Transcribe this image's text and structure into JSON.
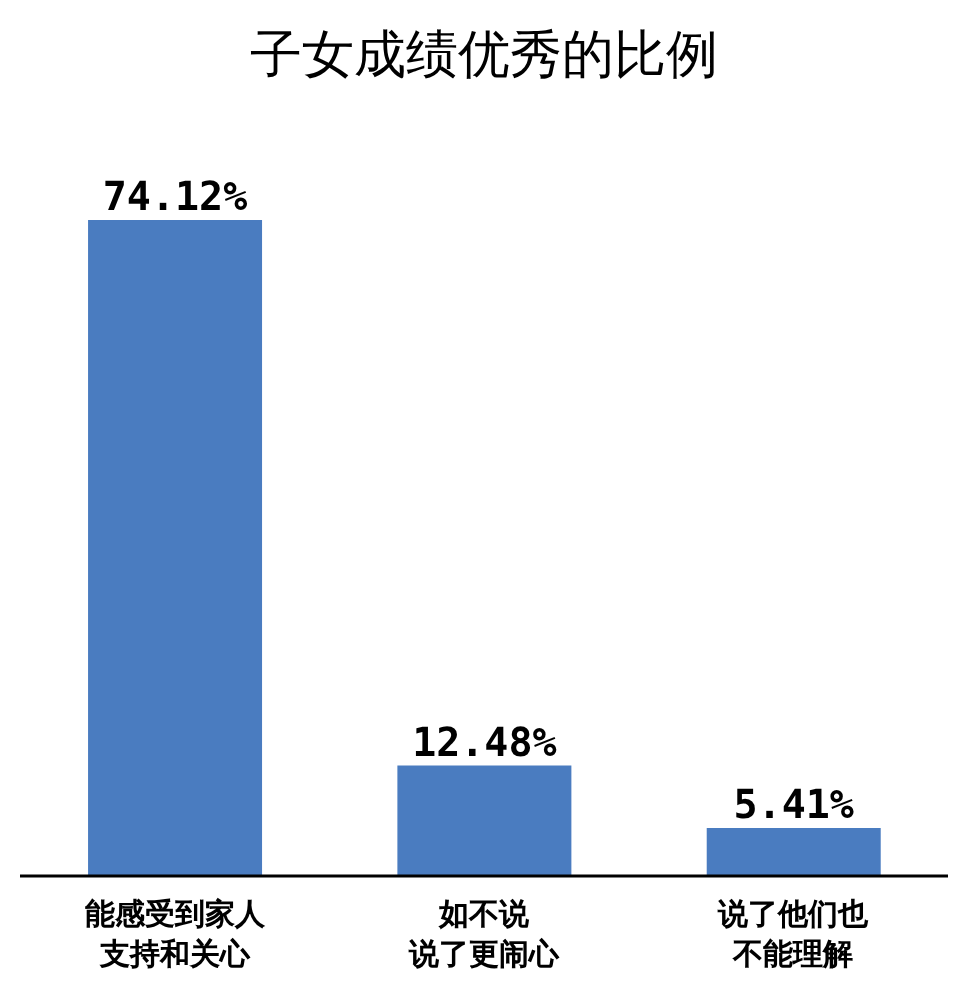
{
  "chart_data": {
    "type": "bar",
    "title": "子女成绩优秀的比例",
    "categories": [
      "能感受到家人支持和关心",
      "如不说说了更闹心",
      "说了他们也不能理解"
    ],
    "values": [
      74.12,
      12.48,
      5.41
    ],
    "value_labels": [
      "74.12%",
      "12.48%",
      "5.41%"
    ],
    "color": "#4a7cc0"
  }
}
